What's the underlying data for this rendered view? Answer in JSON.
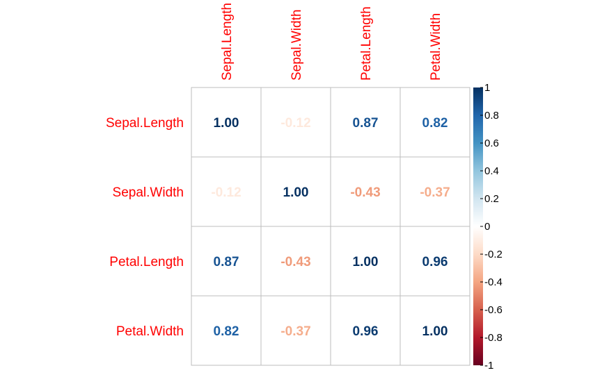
{
  "chart_data": {
    "type": "heatmap",
    "variables": [
      "Sepal.Length",
      "Sepal.Width",
      "Petal.Length",
      "Petal.Width"
    ],
    "matrix": [
      [
        1.0,
        -0.12,
        0.87,
        0.82
      ],
      [
        -0.12,
        1.0,
        -0.43,
        -0.37
      ],
      [
        0.87,
        -0.43,
        1.0,
        0.96
      ],
      [
        0.82,
        -0.37,
        0.96,
        1.0
      ]
    ],
    "cell_labels": [
      [
        "1.00",
        "-0.12",
        "0.87",
        "0.82"
      ],
      [
        "-0.12",
        "1.00",
        "-0.43",
        "-0.37"
      ],
      [
        "0.87",
        "-0.43",
        "1.00",
        "0.96"
      ],
      [
        "0.82",
        "-0.37",
        "0.96",
        "1.00"
      ]
    ],
    "colorbar": {
      "range": [
        -1,
        1
      ],
      "tick_labels": [
        "1",
        "0.8",
        "0.6",
        "0.4",
        "0.2",
        "0",
        "-0.2",
        "-0.4",
        "-0.6",
        "-0.8",
        "-1"
      ]
    },
    "label_color": "#ff0000",
    "colors": {
      "negative_end": "#67001f",
      "neutral": "#ffffff",
      "positive_end": "#053061",
      "grid": "#bebebe",
      "text": "#000000"
    }
  }
}
